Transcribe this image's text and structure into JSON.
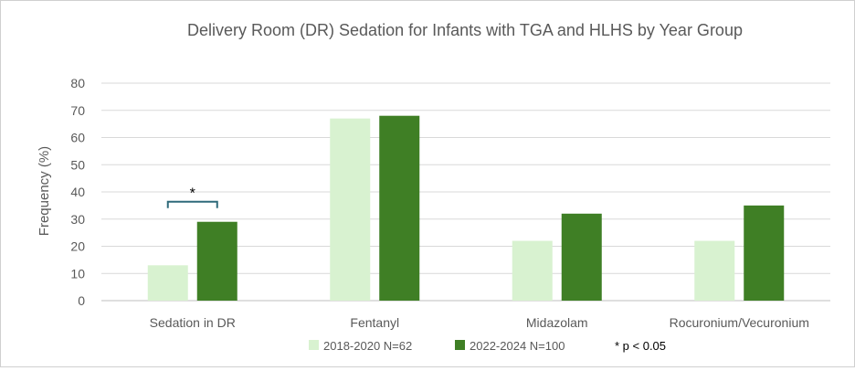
{
  "chart_data": {
    "type": "bar",
    "title": "Delivery Room (DR) Sedation for Infants with TGA and HLHS by Year Group",
    "xlabel": "",
    "ylabel": "Frequency (%)",
    "ylim": [
      0,
      80
    ],
    "yticks": [
      0,
      10,
      20,
      30,
      40,
      50,
      60,
      70,
      80
    ],
    "grid": true,
    "legend_position": "bottom",
    "categories": [
      "Sedation in DR",
      "Fentanyl",
      "Midazolam",
      "Rocuronium/Vecuronium"
    ],
    "series": [
      {
        "name": "2018-2020 N=62",
        "color": "#d8f2d0",
        "values": [
          13,
          67,
          22,
          22
        ]
      },
      {
        "name": "2022-2024 N=100",
        "color": "#3f7f25",
        "values": [
          29,
          68,
          32,
          35
        ]
      }
    ],
    "annotation": {
      "category_index": 0,
      "symbol": "*",
      "bracket_color": "#2f6a7a"
    },
    "footnote": "* p < 0.05"
  }
}
